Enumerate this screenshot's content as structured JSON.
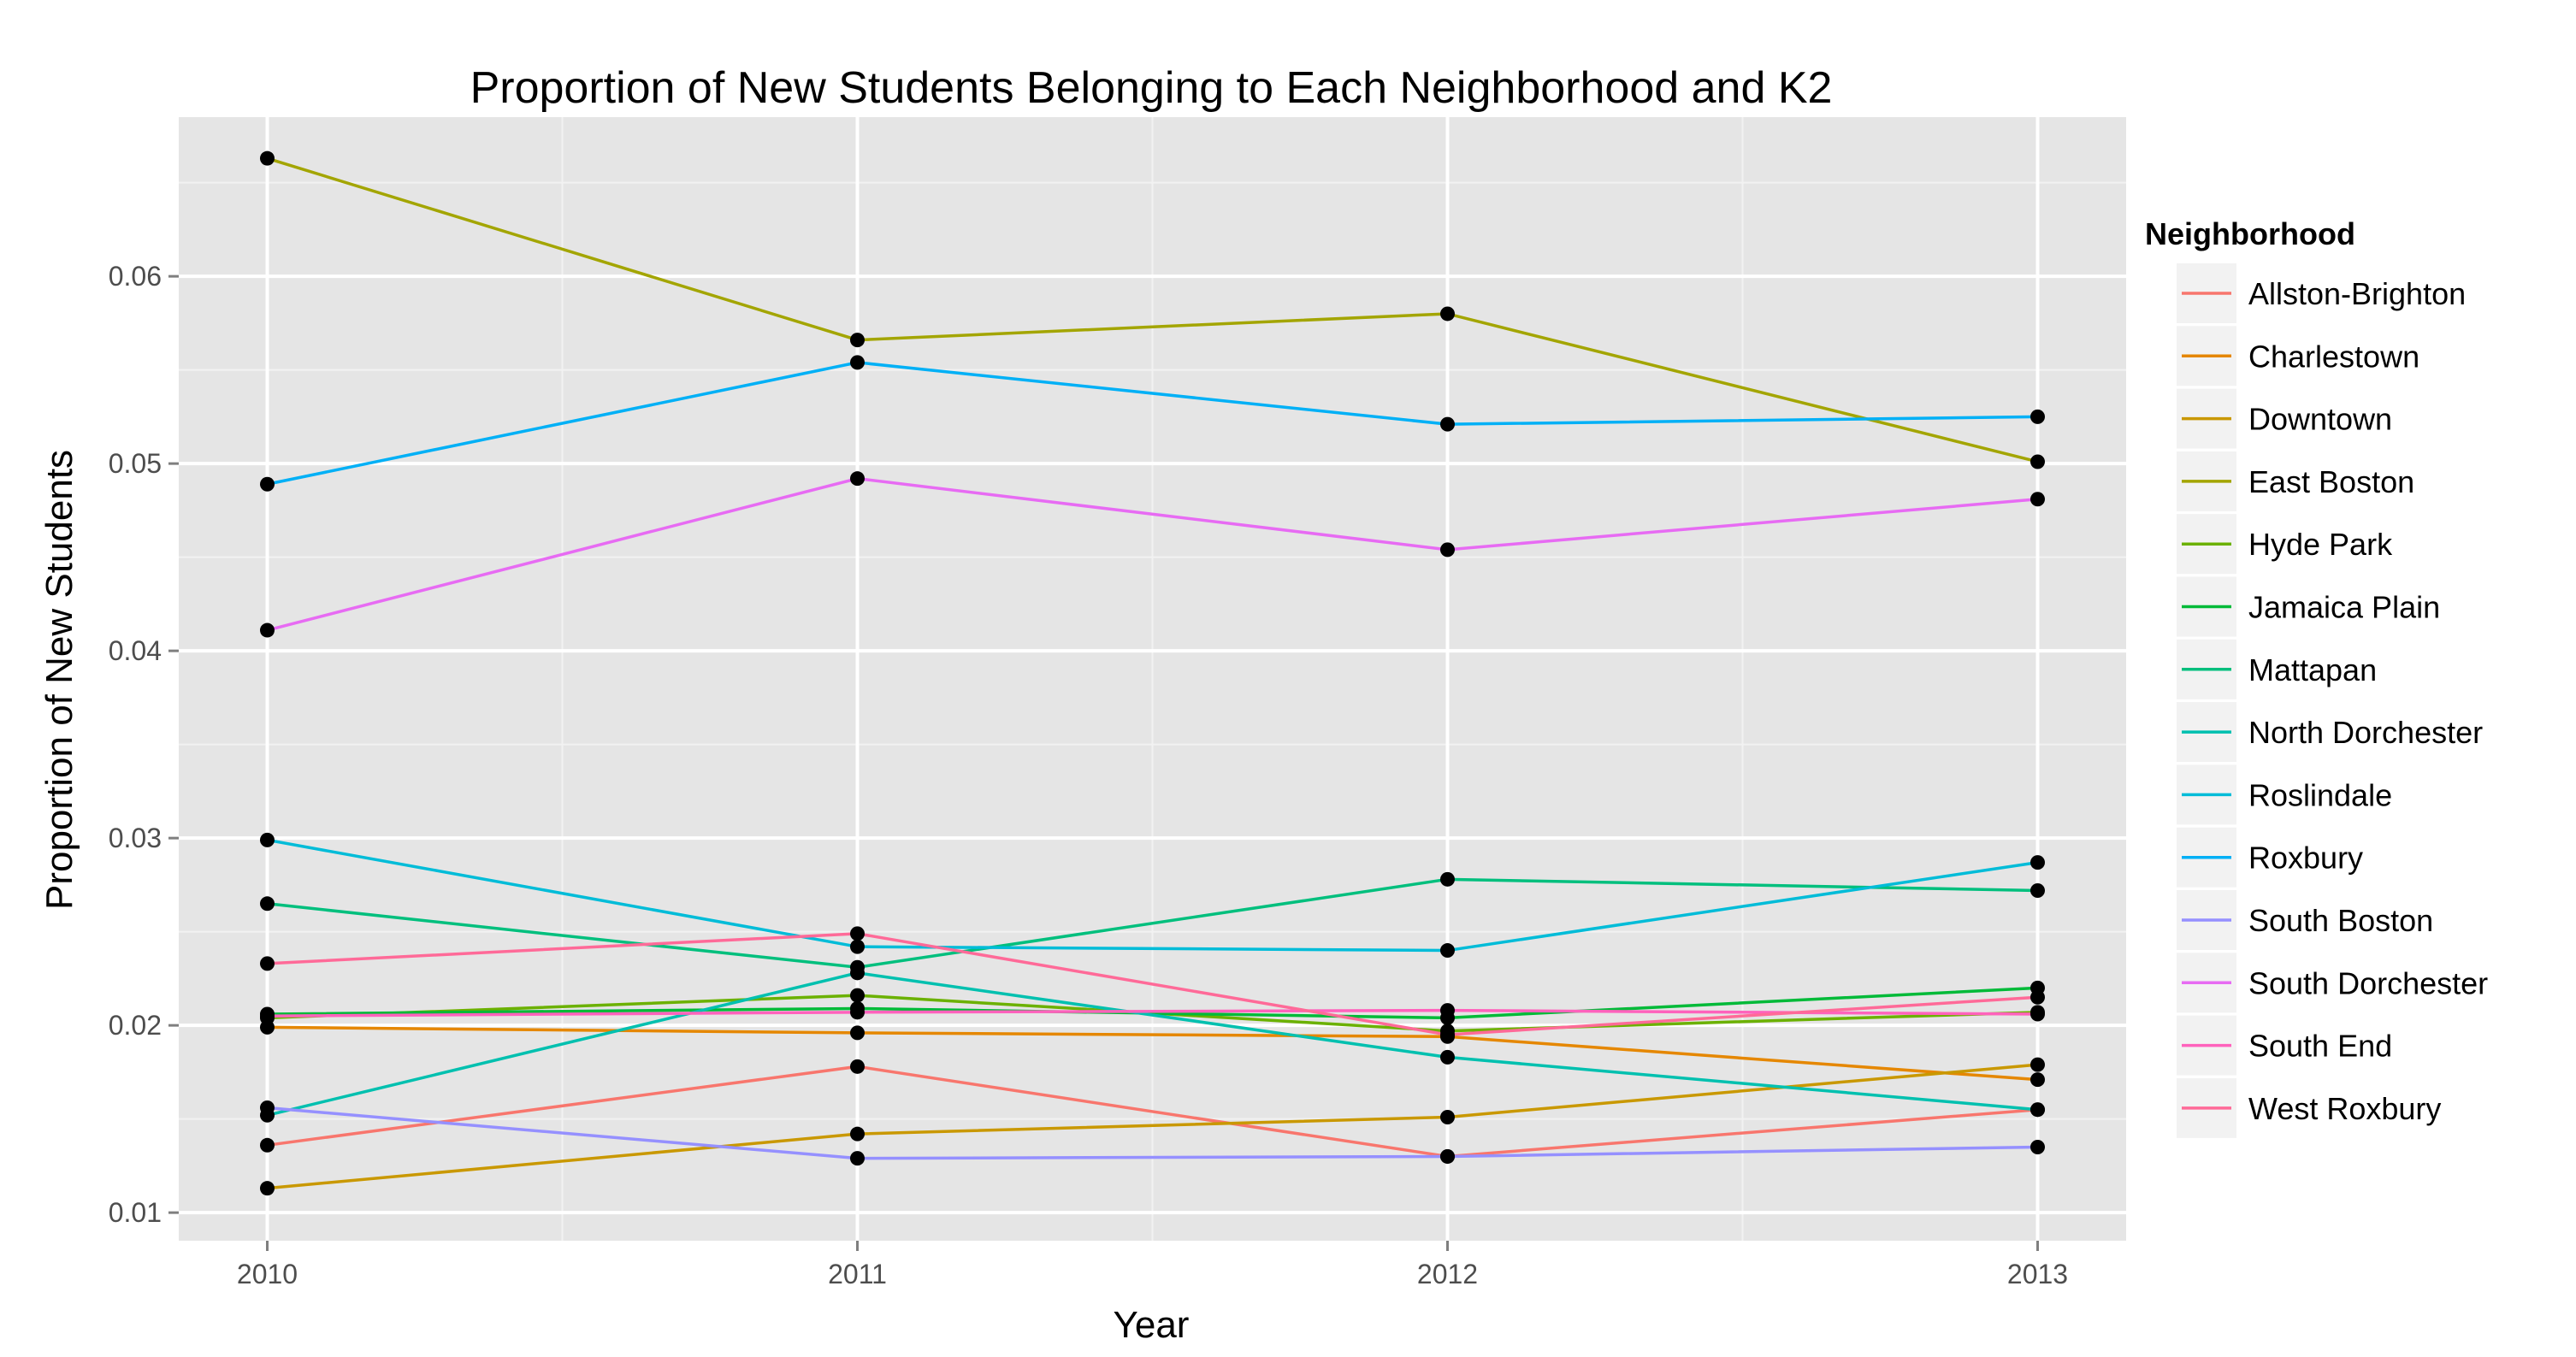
{
  "chart_data": {
    "type": "line",
    "title": "Proportion of New Students Belonging to Each Neighborhood and K2",
    "xlabel": "Year",
    "ylabel": "Proportion of New Students",
    "x": [
      2010,
      2011,
      2012,
      2013
    ],
    "x_tick_labels": [
      "2010",
      "2011",
      "2012",
      "2013"
    ],
    "y_ticks": [
      0.01,
      0.02,
      0.03,
      0.04,
      0.05,
      0.06
    ],
    "y_tick_labels": [
      "0.01",
      "0.02",
      "0.03",
      "0.04",
      "0.05",
      "0.06"
    ],
    "xlim": [
      2009.85,
      2013.15
    ],
    "ylim": [
      0.0085,
      0.0685
    ],
    "grid": true,
    "legend_title": "Neighborhood",
    "legend_position": "right",
    "point_color": "#000000",
    "series": [
      {
        "name": "Allston-Brighton",
        "color": "#F8766D",
        "values": [
          0.0136,
          0.0178,
          0.013,
          0.0155
        ]
      },
      {
        "name": "Charlestown",
        "color": "#E58700",
        "values": [
          0.0199,
          0.0196,
          0.0194,
          0.0171
        ]
      },
      {
        "name": "Downtown",
        "color": "#C99800",
        "values": [
          0.0113,
          0.0142,
          0.0151,
          0.0179
        ]
      },
      {
        "name": "East Boston",
        "color": "#A3A500",
        "values": [
          0.0663,
          0.0566,
          0.058,
          0.0501
        ]
      },
      {
        "name": "Hyde Park",
        "color": "#6BB100",
        "values": [
          0.0204,
          0.0216,
          0.0197,
          0.0207
        ]
      },
      {
        "name": "Jamaica Plain",
        "color": "#00BA38",
        "values": [
          0.0206,
          0.0209,
          0.0204,
          0.022
        ]
      },
      {
        "name": "Mattapan",
        "color": "#00BF7D",
        "values": [
          0.0265,
          0.0231,
          0.0278,
          0.0272
        ]
      },
      {
        "name": "North Dorchester",
        "color": "#00C0AF",
        "values": [
          0.0152,
          0.0228,
          0.0183,
          0.0155
        ]
      },
      {
        "name": "Roslindale",
        "color": "#00BCD8",
        "values": [
          0.0299,
          0.0242,
          0.024,
          0.0287
        ]
      },
      {
        "name": "Roxbury",
        "color": "#00B0F6",
        "values": [
          0.0489,
          0.0554,
          0.0521,
          0.0525
        ]
      },
      {
        "name": "South Boston",
        "color": "#9590FF",
        "values": [
          0.0156,
          0.0129,
          0.013,
          0.0135
        ]
      },
      {
        "name": "South Dorchester",
        "color": "#E76BF3",
        "values": [
          0.0411,
          0.0492,
          0.0454,
          0.0481
        ]
      },
      {
        "name": "South End",
        "color": "#FF62BC",
        "values": [
          0.0205,
          0.0207,
          0.0208,
          0.0206
        ]
      },
      {
        "name": "West Roxbury",
        "color": "#FF6A98",
        "values": [
          0.0233,
          0.0249,
          0.0195,
          0.0215
        ]
      }
    ]
  }
}
